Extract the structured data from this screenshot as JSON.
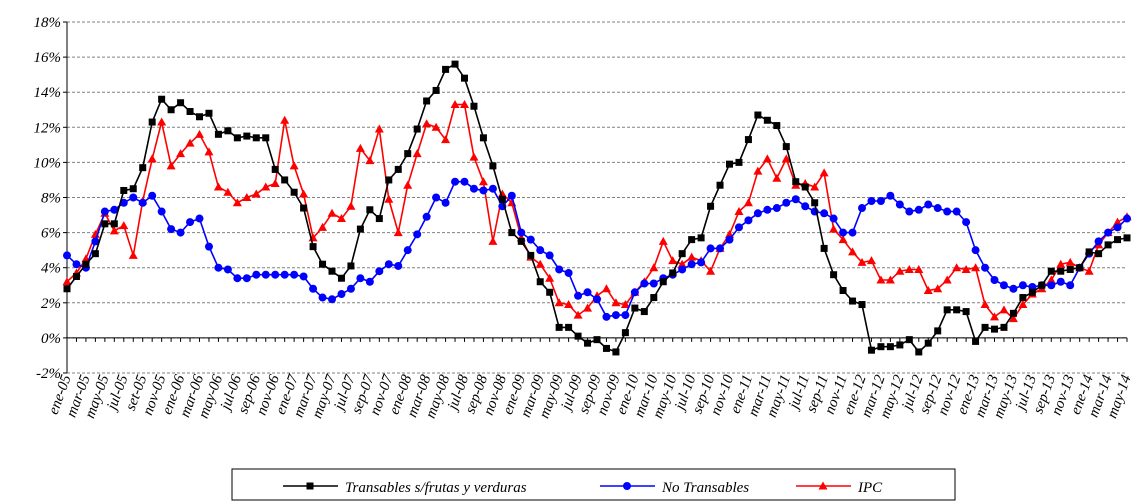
{
  "chart_data": {
    "type": "line",
    "categories": [
      "ene-05",
      null,
      "mar-05",
      null,
      "may-05",
      null,
      "jul-05",
      null,
      "set-05",
      null,
      "nov-05",
      null,
      "ene-06",
      null,
      "mar-06",
      null,
      "may-06",
      null,
      "jul-06",
      null,
      "sep-06",
      null,
      "nov-06",
      null,
      "ene-07",
      null,
      "mar-07",
      null,
      "may-07",
      null,
      "jul-07",
      null,
      "sep-07",
      null,
      "nov-07",
      null,
      "ene-08",
      null,
      "mar-08",
      null,
      "may-08",
      null,
      "jul-08",
      null,
      "sep-08",
      null,
      "nov-08",
      null,
      "ene-09",
      null,
      "mar-09",
      null,
      "may-09",
      null,
      "jul-09",
      null,
      "sep-09",
      null,
      "nov-09",
      null,
      "ene-10",
      null,
      "mar-10",
      null,
      "may-10",
      null,
      "jul-10",
      null,
      "sep-10",
      null,
      "nov-10",
      null,
      "ene-11",
      null,
      "mar-11",
      null,
      "may-11",
      null,
      "jul-11",
      null,
      "sep-11",
      null,
      "nov-11",
      null,
      "ene-12",
      null,
      "mar-12",
      null,
      "may-12",
      null,
      "jul-12",
      null,
      "sep-12",
      null,
      "nov-12",
      null,
      "ene-13",
      null,
      "mar-13",
      null,
      "may-13",
      null,
      "jul-13",
      null,
      "sep-13",
      null,
      "nov-13",
      null,
      "ene-14",
      null,
      "mar-14",
      null,
      "may-14"
    ],
    "series": [
      {
        "name": "Transables s/frutas y verduras",
        "color": "#000000",
        "marker": "square",
        "values": [
          2.8,
          3.5,
          4.2,
          4.8,
          6.5,
          6.5,
          8.4,
          8.5,
          9.7,
          12.3,
          13.6,
          13.0,
          13.4,
          12.9,
          12.6,
          12.8,
          11.6,
          11.8,
          11.4,
          11.5,
          11.4,
          11.4,
          9.6,
          9.0,
          8.3,
          7.4,
          5.2,
          4.2,
          3.8,
          3.4,
          4.1,
          6.2,
          7.3,
          6.8,
          9.0,
          9.6,
          10.5,
          11.9,
          13.5,
          14.1,
          15.3,
          15.6,
          14.8,
          13.2,
          11.4,
          9.8,
          7.9,
          6.0,
          5.5,
          4.7,
          3.2,
          2.6,
          0.6,
          0.6,
          0.1,
          -0.3,
          -0.1,
          -0.6,
          -0.8,
          0.3,
          1.7,
          1.5,
          2.3,
          3.2,
          3.7,
          4.8,
          5.6,
          5.7,
          7.5,
          8.7,
          9.9,
          10.0,
          11.3,
          12.7,
          12.4,
          12.1,
          10.9,
          8.9,
          8.6,
          7.7,
          5.1,
          3.6,
          2.7,
          2.1,
          1.9,
          -0.7,
          -0.5,
          -0.5,
          -0.4,
          -0.1,
          -0.8,
          -0.3,
          0.4,
          1.6,
          1.6,
          1.5,
          -0.2,
          0.6,
          0.5,
          0.6,
          1.4,
          2.3,
          2.6,
          3.0,
          3.8,
          3.8,
          3.9,
          4.0,
          4.9,
          4.8,
          5.3,
          5.6,
          5.7
        ]
      },
      {
        "name": "No Transables",
        "color": "#0000ff",
        "marker": "circle",
        "values": [
          4.7,
          4.2,
          4.0,
          5.5,
          7.2,
          7.3,
          7.7,
          8.0,
          7.7,
          8.1,
          7.2,
          6.2,
          6.0,
          6.6,
          6.8,
          5.2,
          4.0,
          3.9,
          3.4,
          3.4,
          3.6,
          3.6,
          3.6,
          3.6,
          3.6,
          3.5,
          2.8,
          2.3,
          2.2,
          2.5,
          2.8,
          3.4,
          3.2,
          3.8,
          4.2,
          4.1,
          5.0,
          5.9,
          6.9,
          8.0,
          7.7,
          8.9,
          8.9,
          8.5,
          8.4,
          8.5,
          7.5,
          8.1,
          6.0,
          5.6,
          5.0,
          4.7,
          3.9,
          3.7,
          2.4,
          2.6,
          2.2,
          1.2,
          1.3,
          1.3,
          2.6,
          3.1,
          3.1,
          3.4,
          3.6,
          3.9,
          4.2,
          4.3,
          5.1,
          5.1,
          5.6,
          6.3,
          6.7,
          7.1,
          7.3,
          7.4,
          7.7,
          7.9,
          7.5,
          7.2,
          7.1,
          6.8,
          6.0,
          6.0,
          7.4,
          7.8,
          7.8,
          8.1,
          7.6,
          7.2,
          7.3,
          7.6,
          7.4,
          7.2,
          7.2,
          6.6,
          5.0,
          4.0,
          3.3,
          3.0,
          2.8,
          3.0,
          2.9,
          3.0,
          3.0,
          3.2,
          3.0,
          4.0,
          4.8,
          5.5,
          6.0,
          6.3,
          6.8
        ]
      },
      {
        "name": "IPC",
        "color": "#ff0000",
        "marker": "triangle",
        "values": [
          3.2,
          3.7,
          4.5,
          5.9,
          7.1,
          6.1,
          6.4,
          4.7,
          7.8,
          10.2,
          12.3,
          9.8,
          10.5,
          11.1,
          11.6,
          10.6,
          8.6,
          8.3,
          7.7,
          8.0,
          8.2,
          8.6,
          8.8,
          12.4,
          9.8,
          8.2,
          5.7,
          6.3,
          7.1,
          6.8,
          7.5,
          10.8,
          10.1,
          11.9,
          7.9,
          6.0,
          8.7,
          10.5,
          12.2,
          12.0,
          11.3,
          13.3,
          13.3,
          10.3,
          8.9,
          5.5,
          8.2,
          7.7,
          5.7,
          4.6,
          4.2,
          3.4,
          2.0,
          1.9,
          1.3,
          1.7,
          2.4,
          2.8,
          2.0,
          1.9,
          2.6,
          3.2,
          4.0,
          5.5,
          4.4,
          4.2,
          4.6,
          4.4,
          3.8,
          5.1,
          5.9,
          7.2,
          7.7,
          9.5,
          10.2,
          9.1,
          10.2,
          8.7,
          8.8,
          8.6,
          9.4,
          6.2,
          5.6,
          4.9,
          4.3,
          4.4,
          3.3,
          3.3,
          3.8,
          3.9,
          3.9,
          2.7,
          2.8,
          3.3,
          4.0,
          3.9,
          4.0,
          1.9,
          1.2,
          1.6,
          1.1,
          1.9,
          2.5,
          2.8,
          3.3,
          4.2,
          4.3,
          4.0,
          3.8,
          5.3,
          6.0,
          6.6,
          6.9
        ]
      }
    ],
    "ylim": [
      -2,
      18
    ],
    "yticks": [
      {
        "value": -2,
        "label": "-2%"
      },
      {
        "value": 0,
        "label": "0%"
      },
      {
        "value": 2,
        "label": "2%"
      },
      {
        "value": 4,
        "label": "4%"
      },
      {
        "value": 6,
        "label": "6%"
      },
      {
        "value": 8,
        "label": "8%"
      },
      {
        "value": 10,
        "label": "10%"
      },
      {
        "value": 12,
        "label": "12%"
      },
      {
        "value": 14,
        "label": "14%"
      },
      {
        "value": 16,
        "label": "16%"
      },
      {
        "value": 18,
        "label": "18%"
      }
    ],
    "grid": true
  }
}
